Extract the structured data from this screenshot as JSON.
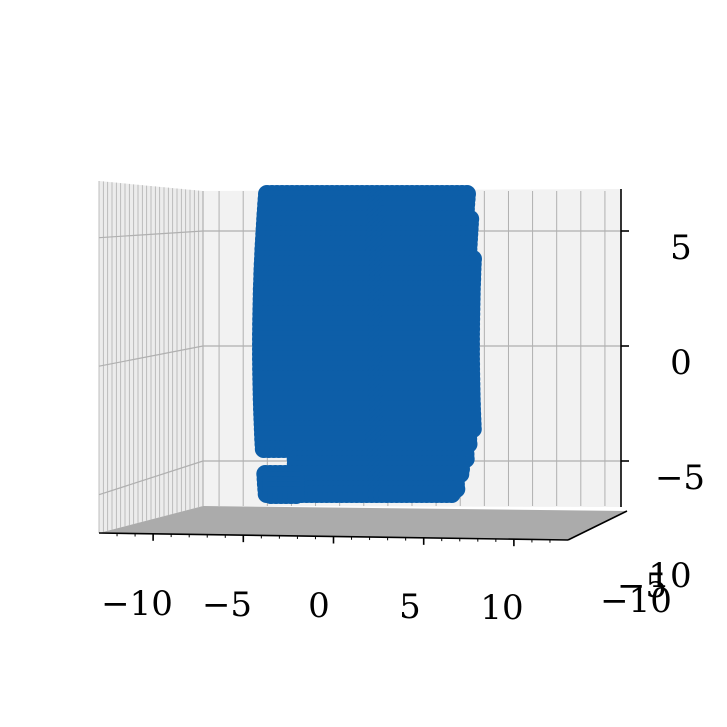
{
  "chart_data": {
    "type": "scatter",
    "projection": "3d",
    "title": "",
    "xlabel": "",
    "ylabel": "",
    "zlabel": "",
    "xlim": [
      -13,
      13
    ],
    "ylim": [
      -10,
      10
    ],
    "zlim": [
      -7.5,
      7.5
    ],
    "x_ticks": [
      -10,
      -5,
      0,
      5,
      10
    ],
    "x_tick_labels": [
      "−10",
      "−5",
      "0",
      "5",
      "10"
    ],
    "y_ticks": [
      -10,
      -5,
      10
    ],
    "y_tick_labels": [
      "−10",
      "−5",
      "10"
    ],
    "z_ticks": [
      -5,
      0,
      5
    ],
    "z_tick_labels": [
      "−5",
      "0",
      "5"
    ],
    "grid": true,
    "legend": "none",
    "colors": {
      "points": "#0d5ea8",
      "pane": "#f2f2f2",
      "floor": "#ababab",
      "grid": "#b0b0b0"
    },
    "series": [
      {
        "marker": "o",
        "x_range": [
          -6,
          9
        ],
        "y_range": [
          -10,
          10
        ],
        "z_range": [
          -7,
          7
        ],
        "step_at_z": -5,
        "x_left_below_step": -3.5
      }
    ]
  }
}
